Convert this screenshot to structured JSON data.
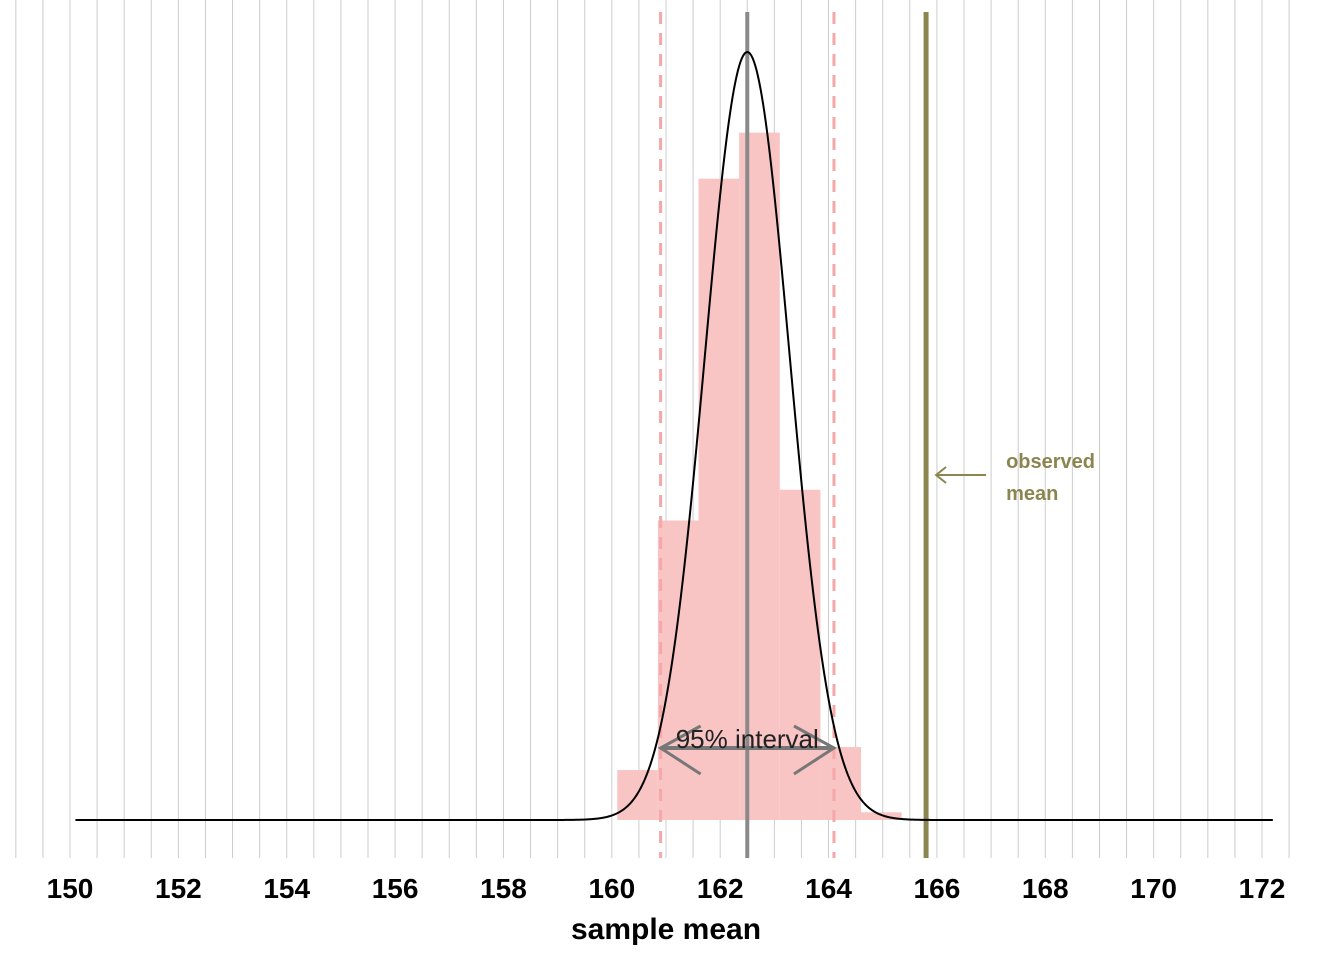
{
  "chart_data": {
    "type": "bar",
    "title": "",
    "xlabel": "sample mean",
    "ylabel": "",
    "xlim": [
      150,
      172
    ],
    "x_ticks": [
      "150",
      "152",
      "154",
      "156",
      "158",
      "160",
      "162",
      "164",
      "166",
      "168",
      "170",
      "172"
    ],
    "grid": "vertical lines every 0.5",
    "histogram": {
      "bin_width": 0.75,
      "bins": [
        {
          "start": 160.1,
          "end": 160.85,
          "height": 0.065
        },
        {
          "start": 160.85,
          "end": 161.6,
          "height": 0.39
        },
        {
          "start": 161.6,
          "end": 162.35,
          "height": 0.835
        },
        {
          "start": 162.35,
          "end": 163.1,
          "height": 0.895
        },
        {
          "start": 163.1,
          "end": 163.85,
          "height": 0.43
        },
        {
          "start": 163.85,
          "end": 164.6,
          "height": 0.095
        },
        {
          "start": 164.6,
          "end": 165.35,
          "height": 0.01
        }
      ]
    },
    "density_curve": {
      "mean": 162.5,
      "sd": 0.78,
      "x_range": [
        150.1,
        172.2
      ],
      "peak_height": 1.0
    },
    "reference_lines": {
      "center_mean": 162.5,
      "interval_lower": 160.9,
      "interval_upper": 164.1,
      "observed_mean": 165.8
    },
    "annotations": {
      "interval_label": "95% interval",
      "observed_label_line1": "observed",
      "observed_label_line2": "mean"
    },
    "colors": {
      "histogram_fill": "#f8c4c4",
      "interval_dashed": "#f4a8a8",
      "center_line": "#8a8a8a",
      "observed_line": "#8b8650",
      "density_line": "#000000",
      "grid": "#cccccc",
      "interval_arrow": "#777777"
    }
  }
}
